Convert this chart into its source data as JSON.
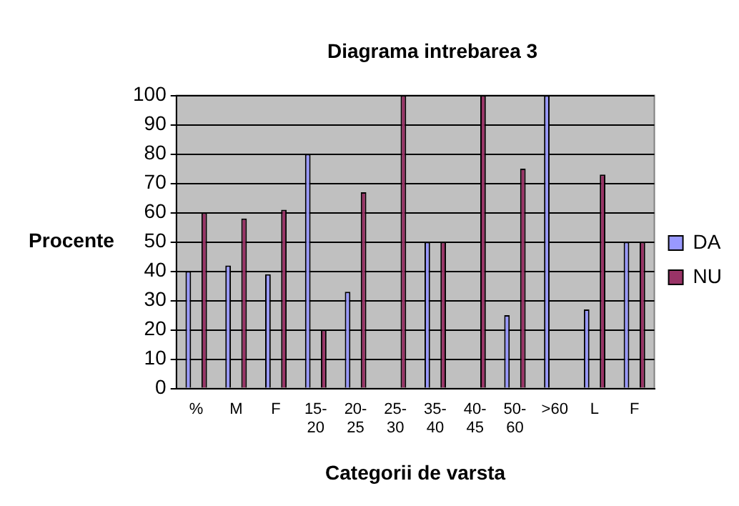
{
  "chart_data": {
    "type": "bar",
    "title": "Diagrama intrebarea 3",
    "xlabel": "Categorii de varsta",
    "ylabel": "Procente",
    "categories": [
      "%",
      "M",
      "F",
      "15-20",
      "20-25",
      "25-30",
      "35-40",
      "40-45",
      "50-60",
      ">60",
      "L",
      "F"
    ],
    "series": [
      {
        "name": "DA",
        "color": "#9999ff",
        "values": [
          40,
          42,
          39,
          80,
          33,
          0,
          50,
          0,
          25,
          100,
          27,
          50
        ]
      },
      {
        "name": "NU",
        "color": "#993366",
        "values": [
          60,
          58,
          61,
          20,
          67,
          100,
          50,
          100,
          75,
          0,
          73,
          50
        ]
      }
    ],
    "ylim": [
      0,
      100
    ],
    "yticks": [
      0,
      10,
      20,
      30,
      40,
      50,
      60,
      70,
      80,
      90,
      100
    ],
    "grid": "y",
    "legend": "right"
  }
}
